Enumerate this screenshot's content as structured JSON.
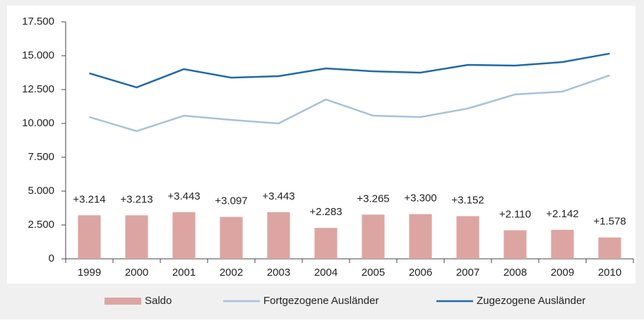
{
  "chart_data": {
    "type": "bar_line",
    "categories": [
      "1999",
      "2000",
      "2001",
      "2002",
      "2003",
      "2004",
      "2005",
      "2006",
      "2007",
      "2008",
      "2009",
      "2010"
    ],
    "series": [
      {
        "name": "Saldo",
        "type": "bar",
        "color": "#dca5a2",
        "values": [
          3214,
          3213,
          3443,
          3097,
          3443,
          2283,
          3265,
          3300,
          3152,
          2110,
          2142,
          1578
        ],
        "value_labels": [
          "+3.214",
          "+3.213",
          "+3.443",
          "+3.097",
          "+3.443",
          "+2.283",
          "+3.265",
          "+3.300",
          "+3.152",
          "+2.110",
          "+2.142",
          "+1.578"
        ]
      },
      {
        "name": "Fortgezogene Ausländer",
        "type": "line",
        "color": "#a9c0dc",
        "values": [
          10470,
          9430,
          10570,
          10260,
          10000,
          11770,
          10570,
          10470,
          11100,
          12140,
          12350,
          13550
        ]
      },
      {
        "name": "Zugezogene Ausländer",
        "type": "line",
        "color": "#1f6aa5",
        "values": [
          13700,
          12660,
          14010,
          13380,
          13490,
          14060,
          13850,
          13750,
          14320,
          14270,
          14530,
          15160
        ]
      }
    ],
    "ylim": [
      0,
      17500
    ],
    "yticks": [
      0,
      {
        "value": 2500,
        "label": "2.500"
      },
      {
        "value": 5000,
        "label": "5.000"
      },
      {
        "value": 7500,
        "label": "7.500"
      },
      {
        "value": 10000,
        "label": "10.000"
      },
      {
        "value": 12500,
        "label": "12.500"
      },
      {
        "value": 15000,
        "label": "15.000"
      },
      {
        "value": 17500,
        "label": "17.500"
      }
    ],
    "legend": "bottom"
  }
}
